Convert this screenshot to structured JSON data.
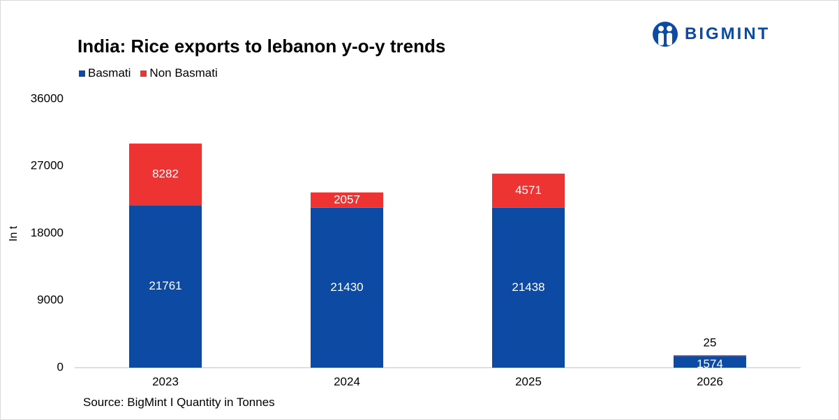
{
  "brand": {
    "name": "BIGMINT",
    "color": "#0c4aa3"
  },
  "source_text": "Source: BigMint I Quantity in Tonnes",
  "chart_data": {
    "type": "bar",
    "stacked": true,
    "title": "India: Rice exports to lebanon y-o-y trends",
    "ylabel": "In t",
    "xlabel": "",
    "categories": [
      "2023",
      "2024",
      "2025",
      "2026"
    ],
    "ylim": [
      0,
      36000
    ],
    "yticks": [
      0,
      9000,
      18000,
      27000,
      36000
    ],
    "grid": false,
    "legend_position": "top-left",
    "series": [
      {
        "name": "Basmati",
        "color": "#0c4aa3",
        "values": [
          21761,
          21430,
          21438,
          1574
        ]
      },
      {
        "name": "Non Basmati",
        "color": "#ee3333",
        "values": [
          8282,
          2057,
          4571,
          25
        ]
      }
    ]
  }
}
